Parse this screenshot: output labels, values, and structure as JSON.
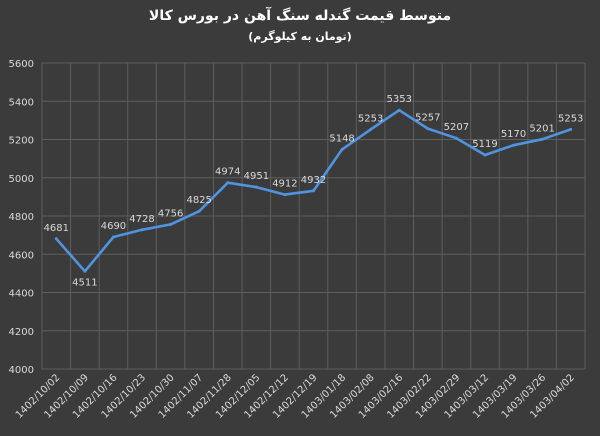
{
  "chart_data": {
    "type": "line",
    "title": "متوسط قیمت گندله سنگ آهن در بورس کالا",
    "subtitle": "(تومان به کیلوگرم)",
    "categories": [
      "1402/10/02",
      "1402/10/09",
      "1402/10/16",
      "1402/10/23",
      "1402/10/30",
      "1402/11/07",
      "1402/11/28",
      "1402/12/05",
      "1402/12/12",
      "1402/12/19",
      "1403/01/18",
      "1403/02/08",
      "1403/02/16",
      "1403/02/22",
      "1403/02/29",
      "1403/03/12",
      "1403/03/19",
      "1403/03/26",
      "1403/04/02"
    ],
    "series": [
      {
        "values": [
          4681,
          4511,
          4690,
          4728,
          4756,
          4825,
          4974,
          4951,
          4912,
          4932,
          5148,
          5253,
          5353,
          5257,
          5207,
          5119,
          5170,
          5201,
          5253
        ]
      }
    ],
    "ylim": [
      4000,
      5600
    ],
    "yticks": [
      4000,
      4200,
      4400,
      4600,
      4800,
      5000,
      5200,
      5400,
      5600
    ],
    "grid": true,
    "colors": {
      "background": "#3b3b3b",
      "grid": "#5e5e5e",
      "line": "#4f94e0",
      "text": "#d9d9d9"
    }
  }
}
